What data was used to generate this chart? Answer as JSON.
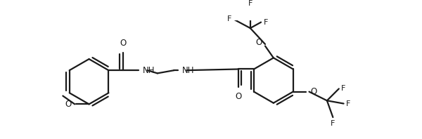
{
  "line_color": "#1a1a1a",
  "bg_color": "#ffffff",
  "lw": 1.6,
  "fs": 8.5,
  "figsize": [
    6.0,
    1.98
  ],
  "dpi": 100,
  "xlim": [
    0,
    600
  ],
  "ylim": [
    0,
    198
  ]
}
